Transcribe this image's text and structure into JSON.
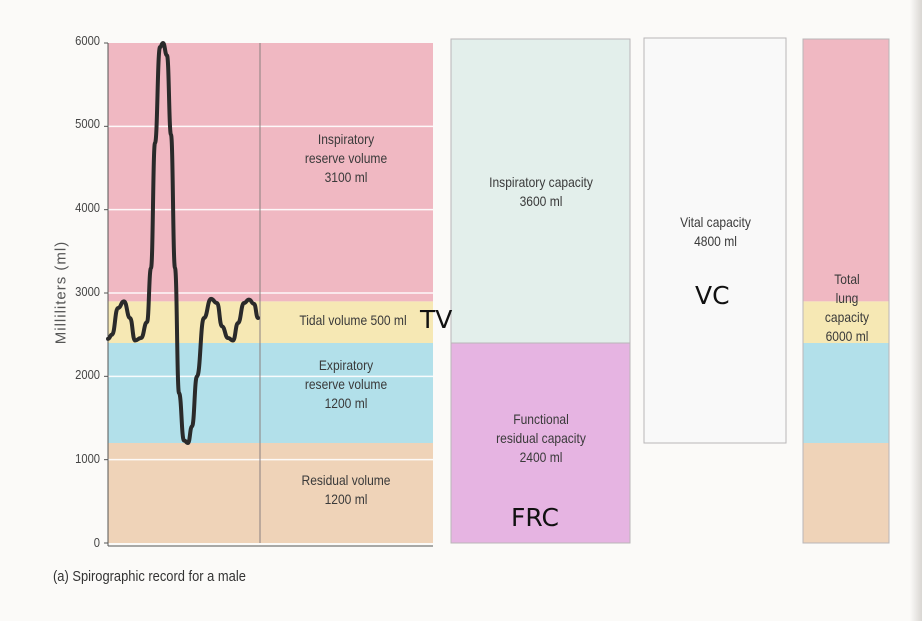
{
  "chart_data": {
    "type": "diagram",
    "ylabel": "Milliliters (ml)",
    "yticks": [
      0,
      1000,
      2000,
      3000,
      4000,
      5000,
      6000
    ],
    "ylim": [
      0,
      6000
    ],
    "segments": [
      {
        "id": "residual",
        "text": "Residual volume\n1200 ml",
        "from": 0,
        "to": 1200,
        "color": "#efd3b8"
      },
      {
        "id": "expiratory",
        "text": "Expiratory\nreserve volume\n1200 ml",
        "from": 1200,
        "to": 2400,
        "color": "#b2e0ea"
      },
      {
        "id": "tidal",
        "text": "Tidal volume 500 ml",
        "from": 2400,
        "to": 2900,
        "color": "#f6e8b4"
      },
      {
        "id": "inspiratory",
        "text": "Inspiratory\nreserve volume\n3100 ml",
        "from": 2900,
        "to": 6000,
        "color": "#f0b8c2"
      }
    ],
    "capacities": [
      {
        "id": "ic",
        "text": "Inspiratory capacity\n3600 ml",
        "from": 2400,
        "to": 6000,
        "color": "#e3efeb"
      },
      {
        "id": "frc",
        "text": "Functional\nresidual capacity\n2400 ml",
        "from": 0,
        "to": 2400,
        "color": "#e6b4e2"
      },
      {
        "id": "vc",
        "text": "Vital capacity\n4800 ml",
        "from": 1200,
        "to": 6000,
        "color": "#f9f9f9"
      },
      {
        "id": "tlc",
        "text": "Total\nlung\ncapacity\n6000 ml",
        "from": 0,
        "to": 6000
      }
    ],
    "annotations": {
      "tv": "TV",
      "frc": "FRC",
      "vc": "VC"
    },
    "caption": "(a) Spirographic record for a male"
  }
}
